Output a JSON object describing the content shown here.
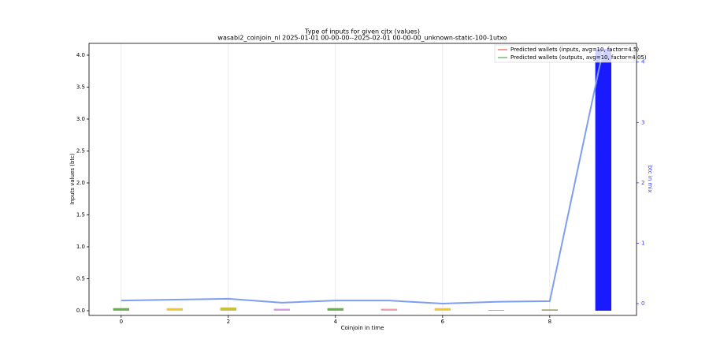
{
  "chart_data": {
    "type": "bar",
    "title": "Type of inputs for given cjtx (values)",
    "subtitle": "wasabi2_coinjoin_nl 2025-01-01 00-00-00--2025-02-01 00-00-00_unknown-static-100-1utxo",
    "xlabel": "Coinjoin in time",
    "ylabel": "Inputs values (btc)",
    "y2label": "btc in mix",
    "x": [
      0,
      1,
      2,
      3,
      4,
      5,
      6,
      7,
      8,
      9
    ],
    "values": [
      0.04,
      0.04,
      0.05,
      0.03,
      0.04,
      0.03,
      0.04,
      0.01,
      0.02,
      4.1
    ],
    "colors": [
      "#6ab04c",
      "#f0c93a",
      "#c9c040",
      "#d89ae0",
      "#6ab04c",
      "#f0a0a8",
      "#f0c93a",
      "#6ab04c",
      "#a0a060",
      "#1a1aff"
    ],
    "line": {
      "color": "#7f9ef0",
      "axis": "y2",
      "values": [
        0.05,
        0.065,
        0.08,
        0.015,
        0.05,
        0.05,
        0.0,
        0.03,
        0.04,
        4.22
      ]
    },
    "legend_entries": [
      {
        "name": "Predicted wallets (inputs, avg=10, factor=4.5)",
        "color": "#f08070"
      },
      {
        "name": "Predicted wallets (outputs, avg=10, factor=4.05)",
        "color": "#70c070"
      }
    ],
    "legend": "upper right",
    "xlim": [
      -0.6,
      9.62
    ],
    "xticks": [
      0,
      2,
      4,
      6,
      8
    ],
    "ylim": [
      -0.074,
      4.185
    ],
    "yticks": [
      {
        "value": 0,
        "label": "0.0"
      },
      0.5,
      {
        "value": 1,
        "label": "1.0"
      },
      1.5,
      {
        "value": 2,
        "label": "2.0"
      },
      2.5,
      {
        "value": 3,
        "label": "3.0"
      },
      3.5,
      {
        "value": 4,
        "label": "4.0"
      }
    ],
    "y2lim": [
      -0.196,
      4.31
    ],
    "y2ticks": [
      0,
      1,
      2,
      3,
      4
    ],
    "y2color": "#3a3aff",
    "grid": true
  }
}
